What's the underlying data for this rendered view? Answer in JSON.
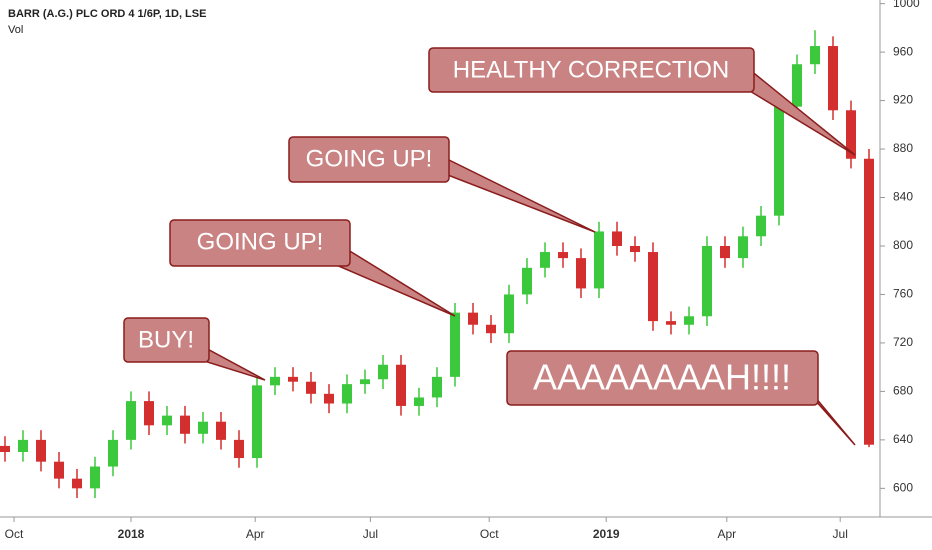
{
  "chart_data": {
    "type": "candlestick",
    "title": "BARR (A.G.) PLC ORD 4 1/6P, 1D, LSE",
    "subtitle": "Vol",
    "x": [
      null,
      null,
      null,
      null,
      null,
      null,
      null,
      null,
      null,
      null,
      null,
      null,
      null,
      null,
      null,
      null,
      null,
      null,
      null,
      null,
      null,
      null,
      null,
      null,
      null,
      null,
      null,
      null,
      null,
      null,
      null,
      null,
      null,
      null,
      null,
      null,
      null,
      null,
      null,
      null,
      null,
      null,
      null,
      null,
      null,
      null,
      null,
      null,
      null
    ],
    "open": [
      635,
      630,
      640,
      622,
      608,
      600,
      618,
      640,
      672,
      652,
      660,
      645,
      655,
      640,
      625,
      685,
      692,
      688,
      678,
      670,
      686,
      690,
      702,
      668,
      675,
      692,
      745,
      735,
      728,
      760,
      782,
      795,
      790,
      765,
      812,
      800,
      795,
      738,
      735,
      742,
      800,
      790,
      808,
      825,
      915,
      950,
      965,
      912,
      872
    ],
    "high": [
      643,
      648,
      648,
      630,
      616,
      626,
      648,
      680,
      680,
      668,
      668,
      663,
      663,
      648,
      693,
      700,
      700,
      696,
      686,
      694,
      698,
      710,
      710,
      683,
      700,
      753,
      753,
      743,
      768,
      790,
      803,
      803,
      798,
      820,
      820,
      808,
      803,
      746,
      750,
      808,
      808,
      816,
      833,
      923,
      958,
      978,
      973,
      920,
      880
    ],
    "low": [
      622,
      622,
      614,
      600,
      592,
      592,
      610,
      632,
      644,
      644,
      637,
      637,
      632,
      617,
      617,
      677,
      680,
      670,
      662,
      662,
      678,
      682,
      660,
      660,
      667,
      684,
      727,
      720,
      720,
      752,
      774,
      782,
      757,
      757,
      792,
      787,
      730,
      727,
      727,
      734,
      782,
      782,
      800,
      817,
      907,
      942,
      904,
      864,
      634
    ],
    "close": [
      630,
      640,
      622,
      608,
      600,
      618,
      640,
      672,
      652,
      660,
      645,
      655,
      640,
      625,
      685,
      692,
      688,
      678,
      670,
      686,
      690,
      702,
      668,
      675,
      692,
      745,
      735,
      728,
      760,
      782,
      795,
      790,
      765,
      812,
      800,
      795,
      738,
      735,
      742,
      800,
      790,
      808,
      825,
      915,
      950,
      965,
      912,
      872,
      636
    ],
    "up_color": "#3cc83c",
    "down_color": "#d32f2f",
    "ylim": [
      578,
      1003
    ],
    "yticks": [
      600,
      640,
      680,
      720,
      760,
      800,
      840,
      880,
      920,
      960,
      1000
    ],
    "xticks": [
      {
        "value": 0.5,
        "label": "Oct"
      },
      {
        "value": 7,
        "label": "2018"
      },
      {
        "value": 13.9,
        "label": "Apr"
      },
      {
        "value": 20.3,
        "label": "Jul"
      },
      {
        "value": 26.9,
        "label": "Oct"
      },
      {
        "value": 33.4,
        "label": "2019"
      },
      {
        "value": 40.1,
        "label": "Apr"
      },
      {
        "value": 46.4,
        "label": "Jul"
      }
    ],
    "grid": false,
    "annotations": [
      "BUY!",
      "GOING UP!",
      "GOING UP!",
      "HEALTHY CORRECTION",
      "AAAAAAAAH!!!!"
    ]
  }
}
